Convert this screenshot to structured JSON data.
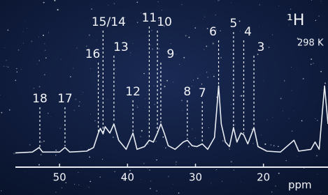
{
  "chart_data": {
    "type": "line",
    "nucleus": "¹H",
    "temperature": "298 K",
    "x_label": "ppm",
    "x": [
      56.5,
      54,
      53,
      52.5,
      50,
      49.2,
      48.5,
      46,
      45,
      44.3,
      44,
      43.6,
      43.3,
      42.6,
      42,
      41.3,
      40.2,
      39.2,
      38.6,
      37.5,
      36.8,
      36.2,
      35.6,
      35.1,
      34.6,
      34,
      33,
      31.8,
      31.2,
      30.5,
      29.8,
      29,
      28.2,
      27.2,
      26.6,
      26.2,
      25.6,
      25,
      24.4,
      23.9,
      23.3,
      22.9,
      22.3,
      21.4,
      20.8,
      19.5,
      17.5,
      15.5,
      14.8,
      13,
      12.4,
      11.8,
      11,
      10.5
    ],
    "values": [
      8,
      9,
      14,
      9,
      9,
      14,
      9,
      10,
      14,
      30,
      35,
      29,
      37,
      30,
      40,
      22,
      12,
      30,
      12,
      15,
      22,
      20,
      30,
      40,
      30,
      16,
      12,
      20,
      22,
      16,
      15,
      18,
      12,
      25,
      82,
      40,
      20,
      15,
      36,
      20,
      30,
      28,
      18,
      36,
      15,
      10,
      9,
      22,
      10,
      12,
      20,
      12,
      82,
      40
    ],
    "xlim": [
      56.5,
      10.5
    ],
    "ylim": [
      0,
      100
    ],
    "xticks": [
      50,
      40,
      30,
      20
    ],
    "color": "#e8ecf2",
    "peaks": [
      {
        "label": "18",
        "x": 52.9
      },
      {
        "label": "17",
        "x": 49.2
      },
      {
        "label": "16",
        "x": 44.3
      },
      {
        "label": "15/14",
        "x": 43.6
      },
      {
        "label": "13",
        "x": 42.0
      },
      {
        "label": "12",
        "x": 39.2
      },
      {
        "label": "11",
        "x": 36.8
      },
      {
        "label": "10",
        "x": 35.6
      },
      {
        "label": "9",
        "x": 35.1
      },
      {
        "label": "8",
        "x": 31.2
      },
      {
        "label": "7",
        "x": 29.0
      },
      {
        "label": "6",
        "x": 26.6
      },
      {
        "label": "5",
        "x": 24.4
      },
      {
        "label": "4",
        "x": 22.9
      },
      {
        "label": "3",
        "x": 21.4
      }
    ]
  }
}
